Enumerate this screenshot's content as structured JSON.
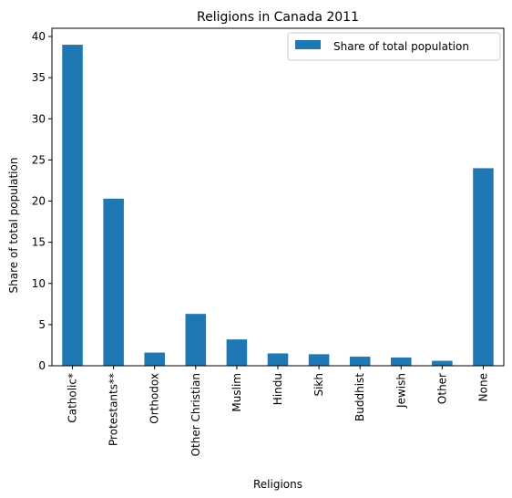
{
  "chart_data": {
    "type": "bar",
    "title": "Religions in Canada 2011",
    "xlabel": "Religions",
    "ylabel": "Share of total population",
    "ylim": [
      0,
      41
    ],
    "yticks": [
      0,
      5,
      10,
      15,
      20,
      25,
      30,
      35,
      40
    ],
    "categories": [
      "Catholic*",
      "Protestants**",
      "Orthodox",
      "Other Christian",
      "Muslim",
      "Hindu",
      "Sikh",
      "Buddhist",
      "Jewish",
      "Other",
      "None"
    ],
    "series": [
      {
        "name": "Share of total population",
        "color": "#1f77b4",
        "values": [
          39.0,
          20.3,
          1.6,
          6.3,
          3.2,
          1.5,
          1.4,
          1.1,
          1.0,
          0.6,
          24.0
        ]
      }
    ],
    "legend": "top-right",
    "grid": false
  }
}
